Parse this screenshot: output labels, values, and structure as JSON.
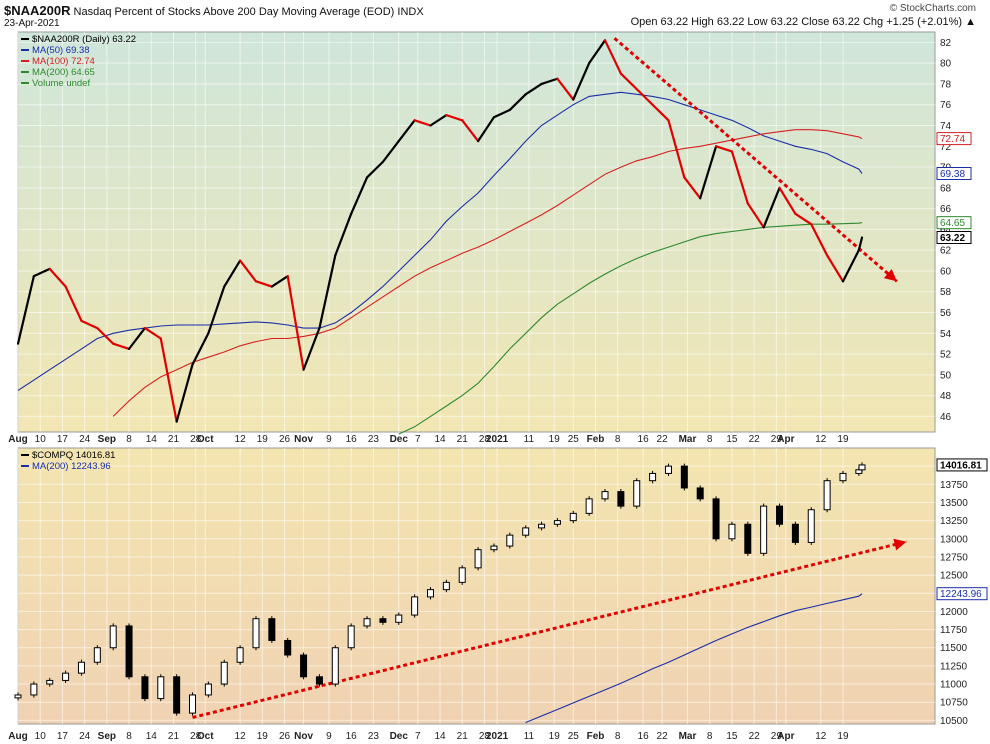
{
  "header": {
    "symbol": "$NAA200R",
    "description": "Nasdaq Percent of Stocks Above 200 Day Moving Average (EOD)",
    "exchange": "INDX",
    "date": "23-Apr-2021",
    "ohlc": "Open 63.22   High 63.22   Low 63.22   Close 63.22   Chg +1.25 (+2.01%) ▲",
    "brand": "© StockCharts.com"
  },
  "colors": {
    "price_up": "#000000",
    "price_down": "#e00000",
    "ma50": "#1a2ea8",
    "ma100": "#d62020",
    "ma200": "#2d8a2d",
    "trend": "#e00000",
    "panel1_top": "#cfe6da",
    "panel1_bottom": "#f2e6b3",
    "panel2_top": "#f3e5b0",
    "panel2_bottom": "#f0d2b2"
  },
  "chart_data": [
    {
      "type": "line",
      "panel": "top",
      "title": "$NAA200R Nasdaq Percent of Stocks Above 200 Day Moving Average (EOD) INDX",
      "legend_position": "top-left",
      "legend": [
        {
          "label": "$NAA200R (Daily) 63.22",
          "color": "#000000"
        },
        {
          "label": "MA(50) 69.38",
          "color": "#1a2ea8"
        },
        {
          "label": "MA(100) 72.74",
          "color": "#d62020"
        },
        {
          "label": "MA(200) 64.65",
          "color": "#2d8a2d"
        },
        {
          "label": "Volume undef",
          "color": "#2d8a2d"
        }
      ],
      "ylim": [
        44.5,
        83
      ],
      "y_ticks": [
        "46",
        "48",
        "50",
        "52",
        "54",
        "56",
        "58",
        "60",
        "62",
        "64",
        "66",
        "68",
        "70",
        "72",
        "74",
        "76",
        "78",
        "80",
        "82"
      ],
      "last_value_labels": [
        {
          "label": "72.74",
          "value": 72.74,
          "color": "#d62020"
        },
        {
          "label": "69.38",
          "value": 69.38,
          "color": "#1a2ea8"
        },
        {
          "label": "64.65",
          "value": 64.65,
          "color": "#2d8a2d"
        },
        {
          "label": "63.22",
          "value": 63.22,
          "color": "#000000"
        }
      ],
      "x_days": [
        0,
        5,
        10,
        15,
        20,
        25,
        30,
        35,
        40,
        45,
        50,
        55,
        60,
        65,
        70,
        75,
        80,
        85,
        90,
        95,
        100,
        105,
        110,
        115,
        120,
        125,
        130,
        135,
        140,
        145,
        150,
        155,
        160,
        165,
        170,
        175,
        180,
        185,
        190,
        195,
        200,
        205,
        210,
        215,
        220,
        225,
        230,
        235,
        240,
        245,
        250,
        255,
        260,
        265,
        266
      ],
      "series": [
        {
          "name": "$NAA200R",
          "values": [
            53.0,
            59.5,
            60.2,
            58.5,
            55.2,
            54.5,
            53.0,
            52.5,
            54.5,
            53.5,
            45.5,
            51.0,
            54.0,
            58.5,
            61.0,
            59.0,
            58.5,
            59.5,
            50.5,
            54.5,
            61.5,
            65.5,
            69.0,
            70.5,
            72.5,
            74.5,
            74.0,
            75.0,
            74.5,
            72.5,
            74.8,
            75.5,
            77.0,
            78.0,
            78.5,
            76.5,
            80.0,
            82.2,
            79.0,
            77.5,
            76.0,
            74.5,
            69.0,
            67.0,
            72.0,
            71.5,
            66.5,
            64.2,
            68.0,
            65.5,
            64.5,
            61.5,
            59.0,
            62.0,
            63.22
          ]
        },
        {
          "name": "MA(50)",
          "values": [
            48.5,
            49.5,
            50.5,
            51.5,
            52.5,
            53.5,
            54.0,
            54.3,
            54.5,
            54.7,
            54.8,
            54.8,
            54.8,
            54.9,
            55.0,
            55.1,
            55.0,
            54.8,
            54.5,
            54.5,
            55.0,
            56.0,
            57.2,
            58.5,
            60.0,
            61.5,
            63.0,
            64.8,
            66.2,
            67.5,
            69.2,
            70.8,
            72.5,
            74.0,
            75.0,
            76.0,
            76.8,
            77.0,
            77.2,
            77.0,
            76.8,
            76.5,
            76.0,
            75.5,
            75.0,
            74.5,
            73.8,
            73.0,
            72.5,
            72.0,
            71.7,
            71.3,
            70.5,
            69.8,
            69.38
          ]
        },
        {
          "name": "MA(100)",
          "values": [
            null,
            null,
            null,
            null,
            null,
            null,
            46.0,
            47.5,
            48.8,
            49.8,
            50.5,
            51.2,
            51.7,
            52.2,
            52.8,
            53.2,
            53.5,
            53.5,
            53.7,
            54.0,
            54.5,
            55.5,
            56.5,
            57.5,
            58.5,
            59.5,
            60.3,
            61.0,
            61.7,
            62.3,
            63.0,
            63.8,
            64.6,
            65.4,
            66.3,
            67.3,
            68.3,
            69.3,
            70.0,
            70.6,
            71.0,
            71.5,
            71.8,
            72.0,
            72.3,
            72.6,
            72.9,
            73.2,
            73.4,
            73.6,
            73.6,
            73.5,
            73.2,
            72.9,
            72.74
          ]
        },
        {
          "name": "MA(200)",
          "values": [
            null,
            null,
            null,
            null,
            null,
            null,
            null,
            null,
            null,
            null,
            null,
            null,
            null,
            null,
            null,
            null,
            null,
            null,
            null,
            null,
            null,
            null,
            null,
            null,
            44.3,
            45.0,
            46.0,
            47.0,
            48.0,
            49.2,
            50.8,
            52.5,
            54.0,
            55.5,
            56.8,
            57.8,
            58.8,
            59.7,
            60.5,
            61.2,
            61.8,
            62.3,
            62.8,
            63.3,
            63.6,
            63.8,
            64.0,
            64.2,
            64.3,
            64.4,
            64.5,
            64.5,
            64.55,
            64.6,
            64.65
          ]
        }
      ],
      "trendline": {
        "from": {
          "x": 188,
          "y": 82.4
        },
        "to": {
          "x": 277,
          "y": 59.0
        }
      }
    },
    {
      "type": "line",
      "panel": "bottom",
      "title": "$COMPQ",
      "legend_position": "top-left",
      "legend": [
        {
          "label": "$COMPQ 14016.81",
          "color": "#000000"
        },
        {
          "label": "MA(200) 12243.96",
          "color": "#1a2ea8"
        }
      ],
      "ylim": [
        10450,
        14250
      ],
      "y_ticks": [
        "10500",
        "10750",
        "11000",
        "11250",
        "11500",
        "11750",
        "12000",
        "12250",
        "12500",
        "12750",
        "13000",
        "13250",
        "13500",
        "13750",
        "14000"
      ],
      "last_value_labels": [
        {
          "label": "14016.81",
          "value": 14016.81,
          "color": "#000000"
        },
        {
          "label": "12243.96",
          "value": 12243.96,
          "color": "#1a2ea8"
        }
      ],
      "x_days": [
        0,
        5,
        10,
        15,
        20,
        25,
        30,
        35,
        40,
        45,
        50,
        55,
        60,
        65,
        70,
        75,
        80,
        85,
        90,
        95,
        100,
        105,
        110,
        115,
        120,
        125,
        130,
        135,
        140,
        145,
        150,
        155,
        160,
        165,
        170,
        175,
        180,
        185,
        190,
        195,
        200,
        205,
        210,
        215,
        220,
        225,
        230,
        235,
        240,
        245,
        250,
        255,
        260,
        265,
        266
      ],
      "series": [
        {
          "name": "$COMPQ",
          "values": [
            10850,
            11000,
            11050,
            11150,
            11300,
            11500,
            11800,
            11100,
            10800,
            11100,
            10600,
            10850,
            11000,
            11300,
            11500,
            11900,
            11600,
            11400,
            11100,
            11000,
            11500,
            11800,
            11900,
            11850,
            11950,
            12200,
            12300,
            12400,
            12600,
            12850,
            12900,
            13050,
            13150,
            13200,
            13250,
            13350,
            13550,
            13650,
            13450,
            13800,
            13900,
            14000,
            13700,
            13550,
            13000,
            13200,
            12800,
            13450,
            13200,
            12950,
            13400,
            13800,
            13900,
            13950,
            14016.81
          ]
        },
        {
          "name": "MA(200)",
          "values": [
            null,
            null,
            null,
            null,
            null,
            null,
            null,
            null,
            null,
            null,
            null,
            null,
            null,
            null,
            null,
            null,
            null,
            null,
            null,
            null,
            null,
            null,
            null,
            null,
            null,
            null,
            null,
            null,
            null,
            null,
            null,
            null,
            10470,
            10560,
            10650,
            10740,
            10830,
            10920,
            11010,
            11110,
            11210,
            11300,
            11400,
            11500,
            11600,
            11690,
            11780,
            11860,
            11940,
            12010,
            12060,
            12110,
            12160,
            12210,
            12243.96
          ]
        }
      ],
      "trendline": {
        "from": {
          "x": 55,
          "y": 10540
        },
        "to": {
          "x": 280,
          "y": 12960
        }
      }
    }
  ],
  "x_axis": {
    "x_min": 0,
    "x_max": 266,
    "x_end": 289,
    "ticks": [
      {
        "label": "Aug",
        "day": 0,
        "strong": true
      },
      {
        "label": "10",
        "day": 7
      },
      {
        "label": "17",
        "day": 14
      },
      {
        "label": "24",
        "day": 21
      },
      {
        "label": "Sep",
        "day": 28,
        "strong": true
      },
      {
        "label": "8",
        "day": 35
      },
      {
        "label": "14",
        "day": 42
      },
      {
        "label": "21",
        "day": 49
      },
      {
        "label": "28",
        "day": 56
      },
      {
        "label": "Oct",
        "day": 59,
        "strong": true
      },
      {
        "label": "12",
        "day": 70
      },
      {
        "label": "19",
        "day": 77
      },
      {
        "label": "26",
        "day": 84
      },
      {
        "label": "Nov",
        "day": 90,
        "strong": true
      },
      {
        "label": "9",
        "day": 98
      },
      {
        "label": "16",
        "day": 105
      },
      {
        "label": "23",
        "day": 112
      },
      {
        "label": "Dec",
        "day": 120,
        "strong": true
      },
      {
        "label": "7",
        "day": 126
      },
      {
        "label": "14",
        "day": 133
      },
      {
        "label": "21",
        "day": 140
      },
      {
        "label": "28",
        "day": 147
      },
      {
        "label": "2021",
        "day": 151,
        "strong": true
      },
      {
        "label": "11",
        "day": 161
      },
      {
        "label": "19",
        "day": 169
      },
      {
        "label": "25",
        "day": 175
      },
      {
        "label": "Feb",
        "day": 182,
        "strong": true
      },
      {
        "label": "8",
        "day": 189
      },
      {
        "label": "16",
        "day": 197
      },
      {
        "label": "22",
        "day": 203
      },
      {
        "label": "Mar",
        "day": 211,
        "strong": true
      },
      {
        "label": "8",
        "day": 218
      },
      {
        "label": "15",
        "day": 225
      },
      {
        "label": "22",
        "day": 232
      },
      {
        "label": "29",
        "day": 239
      },
      {
        "label": "Apr",
        "day": 242,
        "strong": true
      },
      {
        "label": "12",
        "day": 253
      },
      {
        "label": "19",
        "day": 260
      }
    ]
  }
}
